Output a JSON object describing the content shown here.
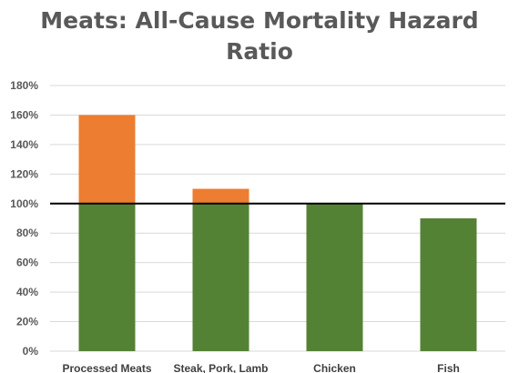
{
  "title_lines": [
    "Meats: All-Cause Mortality Hazard",
    "Ratio"
  ],
  "colors": {
    "base": "#548235",
    "excess": "#ED7D31",
    "reference_line": "#000000",
    "grid": "#D9D9D9"
  },
  "chart_data": {
    "type": "bar",
    "title": "Meats: All-Cause Mortality Hazard Ratio",
    "xlabel": "",
    "ylabel": "",
    "categories": [
      "Processed Meats",
      "Steak, Pork, Lamb",
      "Chicken",
      "Fish"
    ],
    "values": [
      1.6,
      1.1,
      1.0,
      0.9
    ],
    "ylim": [
      0,
      1.8
    ],
    "yticks": [
      0,
      0.2,
      0.4,
      0.6,
      0.8,
      1.0,
      1.2,
      1.4,
      1.6,
      1.8
    ],
    "ytick_labels": [
      "0%",
      "20%",
      "40%",
      "60%",
      "80%",
      "100%",
      "120%",
      "140%",
      "160%",
      "180%"
    ],
    "reference_line": 1.0,
    "grid": true,
    "legend": "none",
    "stacking_note_colors": {
      "below_reference": "base",
      "above_reference": "excess"
    }
  }
}
